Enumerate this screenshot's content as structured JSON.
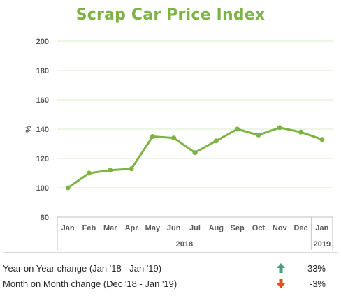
{
  "chart_data": {
    "type": "line",
    "title": "Scrap Car Price Index",
    "ylabel": "%",
    "ylim": [
      80,
      200
    ],
    "yticks": [
      80,
      100,
      120,
      140,
      160,
      180,
      200
    ],
    "categories": [
      "Jan",
      "Feb",
      "Mar",
      "Apr",
      "May",
      "Jun",
      "Jul",
      "Aug",
      "Sep",
      "Oct",
      "Nov",
      "Dec",
      "Jan"
    ],
    "year_groups": [
      {
        "label": "2018",
        "start": 0,
        "end": 11
      },
      {
        "label": "2019",
        "start": 12,
        "end": 12
      }
    ],
    "series": [
      {
        "values": [
          100,
          110,
          112,
          113,
          135,
          134,
          124,
          132,
          140,
          136,
          141,
          138,
          133
        ]
      }
    ],
    "grid": true,
    "colors": {
      "line": "#7cb342",
      "grid": "#dcebc9",
      "title": "#7cb342"
    }
  },
  "stats": [
    {
      "label": "Year on Year change (Jan '18 - Jan '19)",
      "value": "33%",
      "direction": "up",
      "color": "#4f9a82"
    },
    {
      "label": "Month on Month change (Dec '18 - Jan '19)",
      "value": "-3%",
      "direction": "down",
      "color": "#d9531e"
    }
  ]
}
